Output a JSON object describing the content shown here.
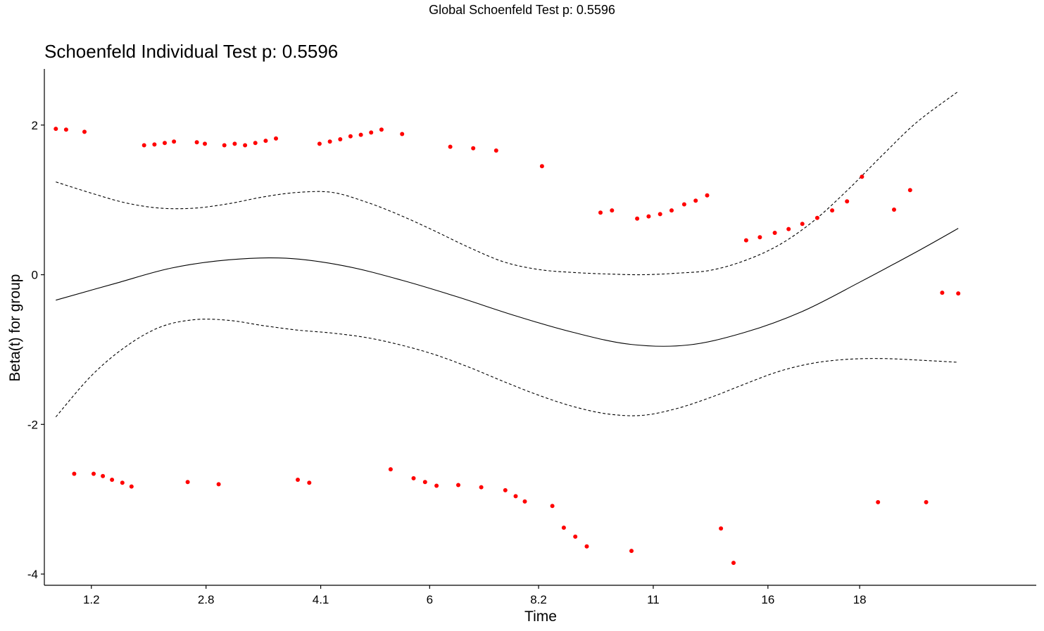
{
  "figure": {
    "global_title": "Global Schoenfeld Test p: 0.5596"
  },
  "chart_data": {
    "type": "scatter",
    "title": "Schoenfeld Individual Test p: 0.5596",
    "xlabel": "Time",
    "ylabel": "Beta(t) for group",
    "x_scale": "ordinal-rank",
    "x_ticks": [
      {
        "pos": 3,
        "label": "1.2"
      },
      {
        "pos": 13,
        "label": "2.8"
      },
      {
        "pos": 23,
        "label": "4.1"
      },
      {
        "pos": 32.5,
        "label": "6"
      },
      {
        "pos": 42,
        "label": "8.2"
      },
      {
        "pos": 52,
        "label": "11"
      },
      {
        "pos": 62,
        "label": "16"
      },
      {
        "pos": 70,
        "label": "18"
      }
    ],
    "x_range": [
      -1.1,
      85.4
    ],
    "ylim": [
      -4.15,
      2.75
    ],
    "y_ticks": [
      2,
      0,
      -2,
      -4
    ],
    "point_color": "#ff0000",
    "points": [
      [
        -0.1,
        1.95
      ],
      [
        0.8,
        1.94
      ],
      [
        2.4,
        1.91
      ],
      [
        1.5,
        -2.66
      ],
      [
        3.2,
        -2.66
      ],
      [
        4.0,
        -2.69
      ],
      [
        4.8,
        -2.74
      ],
      [
        5.7,
        -2.78
      ],
      [
        6.5,
        -2.83
      ],
      [
        7.6,
        1.73
      ],
      [
        8.5,
        1.74
      ],
      [
        9.4,
        1.76
      ],
      [
        10.2,
        1.78
      ],
      [
        11.4,
        -2.77
      ],
      [
        12.2,
        1.77
      ],
      [
        12.9,
        1.75
      ],
      [
        14.1,
        -2.8
      ],
      [
        14.6,
        1.73
      ],
      [
        15.5,
        1.75
      ],
      [
        16.4,
        1.73
      ],
      [
        17.3,
        1.76
      ],
      [
        18.2,
        1.79
      ],
      [
        19.1,
        1.82
      ],
      [
        21.0,
        -2.74
      ],
      [
        22.0,
        -2.78
      ],
      [
        22.9,
        1.75
      ],
      [
        23.8,
        1.78
      ],
      [
        24.7,
        1.81
      ],
      [
        25.6,
        1.85
      ],
      [
        26.5,
        1.87
      ],
      [
        27.4,
        1.9
      ],
      [
        28.3,
        1.94
      ],
      [
        29.1,
        -2.6
      ],
      [
        30.1,
        1.88
      ],
      [
        31.1,
        -2.72
      ],
      [
        32.1,
        -2.77
      ],
      [
        33.1,
        -2.82
      ],
      [
        34.3,
        1.71
      ],
      [
        35.0,
        -2.81
      ],
      [
        36.3,
        1.69
      ],
      [
        37.0,
        -2.84
      ],
      [
        38.3,
        1.66
      ],
      [
        39.1,
        -2.88
      ],
      [
        40.0,
        -2.96
      ],
      [
        40.8,
        -3.03
      ],
      [
        42.3,
        1.45
      ],
      [
        43.2,
        -3.09
      ],
      [
        44.2,
        -3.38
      ],
      [
        45.2,
        -3.5
      ],
      [
        46.2,
        -3.63
      ],
      [
        47.4,
        0.83
      ],
      [
        48.4,
        0.86
      ],
      [
        50.1,
        -3.69
      ],
      [
        50.6,
        0.75
      ],
      [
        51.6,
        0.78
      ],
      [
        52.6,
        0.81
      ],
      [
        53.6,
        0.86
      ],
      [
        54.7,
        0.94
      ],
      [
        55.7,
        0.99
      ],
      [
        56.7,
        1.06
      ],
      [
        57.9,
        -3.39
      ],
      [
        59.0,
        -3.85
      ],
      [
        60.1,
        0.46
      ],
      [
        61.3,
        0.5
      ],
      [
        62.6,
        0.56
      ],
      [
        63.8,
        0.61
      ],
      [
        65.0,
        0.68
      ],
      [
        66.3,
        0.76
      ],
      [
        67.6,
        0.86
      ],
      [
        68.9,
        0.98
      ],
      [
        70.2,
        1.31
      ],
      [
        71.6,
        -3.04
      ],
      [
        73.0,
        0.87
      ],
      [
        74.4,
        1.13
      ],
      [
        75.8,
        -3.04
      ],
      [
        77.2,
        -0.24
      ],
      [
        78.6,
        -0.25
      ]
    ],
    "fit_line": [
      [
        -0.1,
        -0.34
      ],
      [
        5,
        -0.12
      ],
      [
        10,
        0.09
      ],
      [
        15,
        0.2
      ],
      [
        20,
        0.22
      ],
      [
        25,
        0.12
      ],
      [
        30,
        -0.07
      ],
      [
        35,
        -0.3
      ],
      [
        40,
        -0.55
      ],
      [
        45,
        -0.77
      ],
      [
        50,
        -0.93
      ],
      [
        55,
        -0.94
      ],
      [
        60,
        -0.77
      ],
      [
        65,
        -0.49
      ],
      [
        70,
        -0.1
      ],
      [
        75,
        0.31
      ],
      [
        78.6,
        0.62
      ]
    ],
    "upper_band": [
      [
        -0.1,
        1.24
      ],
      [
        3,
        1.09
      ],
      [
        6,
        0.96
      ],
      [
        9,
        0.89
      ],
      [
        12,
        0.89
      ],
      [
        15,
        0.95
      ],
      [
        18,
        1.04
      ],
      [
        21,
        1.1
      ],
      [
        24,
        1.1
      ],
      [
        27,
        0.97
      ],
      [
        30,
        0.79
      ],
      [
        33,
        0.58
      ],
      [
        36,
        0.36
      ],
      [
        39,
        0.17
      ],
      [
        42,
        0.07
      ],
      [
        45,
        0.03
      ],
      [
        48,
        0.01
      ],
      [
        51,
        0.0
      ],
      [
        54,
        0.02
      ],
      [
        57,
        0.06
      ],
      [
        60,
        0.19
      ],
      [
        63,
        0.4
      ],
      [
        66,
        0.72
      ],
      [
        69,
        1.14
      ],
      [
        72,
        1.6
      ],
      [
        75,
        2.04
      ],
      [
        78.6,
        2.45
      ]
    ],
    "lower_band": [
      [
        -0.1,
        -1.9
      ],
      [
        3,
        -1.35
      ],
      [
        6,
        -0.96
      ],
      [
        9,
        -0.7
      ],
      [
        12,
        -0.6
      ],
      [
        15,
        -0.61
      ],
      [
        18,
        -0.68
      ],
      [
        21,
        -0.74
      ],
      [
        24,
        -0.78
      ],
      [
        27,
        -0.84
      ],
      [
        30,
        -0.94
      ],
      [
        33,
        -1.07
      ],
      [
        36,
        -1.24
      ],
      [
        39,
        -1.43
      ],
      [
        42,
        -1.61
      ],
      [
        45,
        -1.76
      ],
      [
        48,
        -1.86
      ],
      [
        51,
        -1.88
      ],
      [
        54,
        -1.79
      ],
      [
        57,
        -1.64
      ],
      [
        60,
        -1.46
      ],
      [
        63,
        -1.29
      ],
      [
        66,
        -1.18
      ],
      [
        69,
        -1.13
      ],
      [
        72,
        -1.12
      ],
      [
        75,
        -1.14
      ],
      [
        78.6,
        -1.17
      ]
    ]
  }
}
